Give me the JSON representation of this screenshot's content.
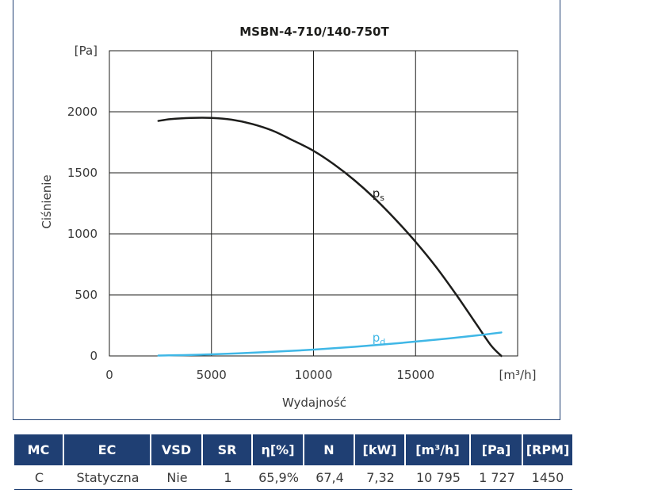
{
  "chart_data": {
    "type": "line",
    "title": "MSBN-4-710/140-750T",
    "xlabel": "Wydajność",
    "ylabel": "Ciśnienie",
    "x_unit": "[m³/h]",
    "y_unit": "[Pa]",
    "xlim": [
      0,
      20000
    ],
    "ylim": [
      0,
      2500
    ],
    "x_ticks": [
      "0",
      "5000",
      "10000",
      "15000"
    ],
    "y_ticks": [
      "0",
      "500",
      "1000",
      "1500",
      "2000"
    ],
    "grid": true,
    "series": [
      {
        "name": "ps",
        "label_main": "p",
        "label_sub": "s",
        "color": "#1d1d1b",
        "x": [
          2400,
          3000,
          4000,
          5000,
          6000,
          7000,
          8000,
          9000,
          10000,
          11000,
          12000,
          13000,
          14000,
          15000,
          16000,
          17000,
          18000,
          18700,
          19200
        ],
        "y": [
          1925,
          1940,
          1950,
          1950,
          1935,
          1900,
          1845,
          1765,
          1680,
          1570,
          1440,
          1290,
          1120,
          935,
          730,
          500,
          255,
          85,
          0
        ]
      },
      {
        "name": "pd",
        "label_main": "p",
        "label_sub": "d",
        "color": "#3fb7e6",
        "x": [
          2400,
          5000,
          8000,
          10000,
          12000,
          14000,
          16000,
          18000,
          19200
        ],
        "y": [
          3,
          13,
          34,
          52,
          75,
          102,
          133,
          168,
          192
        ]
      }
    ]
  },
  "table": {
    "headers": [
      "MC",
      "EC",
      "VSD",
      "SR",
      "η[%]",
      "N",
      "[kW]",
      "[m³/h]",
      "[Pa]",
      "[RPM]"
    ],
    "row": [
      "C",
      "Statyczna",
      "Nie",
      "1",
      "65,9%",
      "67,4",
      "7,32",
      "10 795",
      "1 727",
      "1450"
    ]
  }
}
